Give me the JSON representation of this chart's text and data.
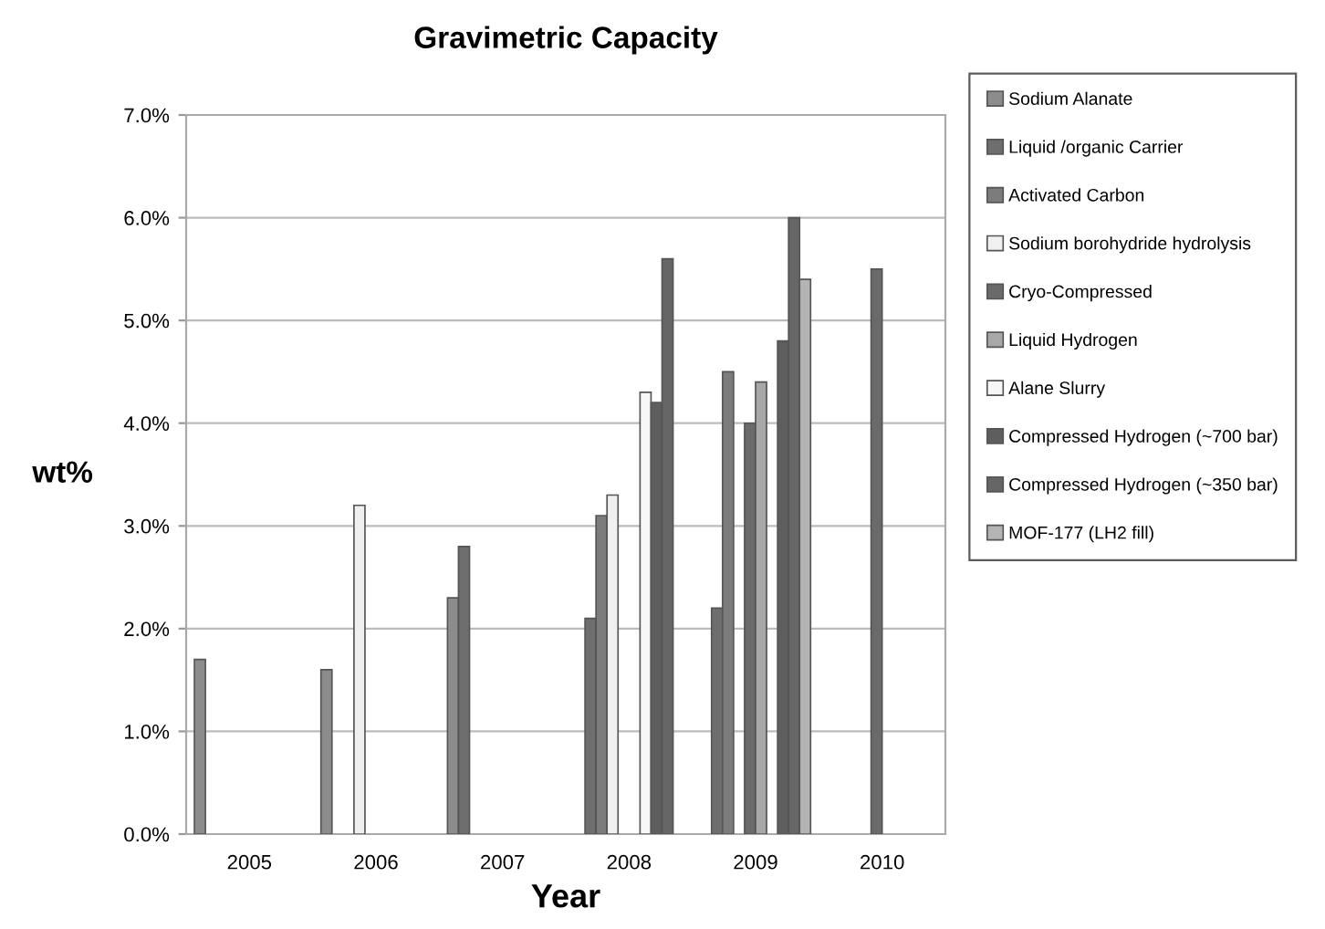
{
  "chart_data": {
    "type": "bar",
    "title": "Gravimetric Capacity",
    "xlabel": "Year",
    "ylabel": "wt%",
    "categories": [
      "2005",
      "2006",
      "2007",
      "2008",
      "2009",
      "2010"
    ],
    "series": [
      {
        "name": "Sodium Alanate",
        "color": "#8c8c8c",
        "values": [
          1.7,
          1.6,
          2.3,
          null,
          null,
          null
        ]
      },
      {
        "name": "Liquid /organic Carrier",
        "color": "#6e6e6e",
        "values": [
          null,
          null,
          2.8,
          2.1,
          2.2,
          null
        ]
      },
      {
        "name": "Activated Carbon",
        "color": "#7c7c7c",
        "values": [
          null,
          null,
          null,
          3.1,
          4.5,
          null
        ]
      },
      {
        "name": "Sodium borohydride hydrolysis",
        "color": "#f0f0f0",
        "values": [
          null,
          3.2,
          null,
          3.3,
          null,
          null
        ]
      },
      {
        "name": "Cryo-Compressed",
        "color": "#6a6a6a",
        "values": [
          null,
          null,
          null,
          null,
          4.0,
          5.5
        ]
      },
      {
        "name": "Liquid Hydrogen",
        "color": "#a8a8a8",
        "values": [
          null,
          null,
          null,
          null,
          4.4,
          null
        ]
      },
      {
        "name": "Alane Slurry",
        "color": "#f7f7f7",
        "values": [
          null,
          null,
          null,
          4.3,
          null,
          null
        ]
      },
      {
        "name": "Compressed Hydrogen (~700 bar)",
        "color": "#5e5e5e",
        "values": [
          null,
          null,
          null,
          4.2,
          4.8,
          null
        ]
      },
      {
        "name": "Compressed Hydrogen (~350 bar)",
        "color": "#666666",
        "values": [
          null,
          null,
          null,
          5.6,
          6.0,
          null
        ]
      },
      {
        "name": "MOF-177 (LH2 fill)",
        "color": "#b4b4b4",
        "values": [
          null,
          null,
          null,
          null,
          5.4,
          null
        ]
      }
    ],
    "ylim": [
      0,
      7
    ],
    "yticks": [
      {
        "value": 0,
        "label": "0.0%"
      },
      {
        "value": 1,
        "label": "1.0%"
      },
      {
        "value": 2,
        "label": "2.0%"
      },
      {
        "value": 3,
        "label": "3.0%"
      },
      {
        "value": 4,
        "label": "4.0%"
      },
      {
        "value": 5,
        "label": "5.0%"
      },
      {
        "value": 6,
        "label": "6.0%"
      },
      {
        "value": 7,
        "label": "7.0%"
      }
    ],
    "grid": "y",
    "legend": "right"
  }
}
